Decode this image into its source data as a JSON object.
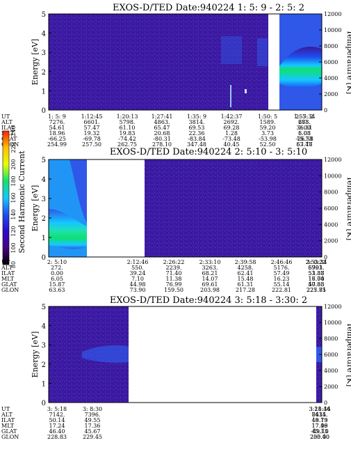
{
  "colors": {
    "background": "#3a1aa0",
    "noise": "#5a2bc0",
    "cyan": "#18d8e8",
    "green": "#1ee06a",
    "blue": "#2f58e8"
  },
  "colorbar": {
    "label": "Second Harmonic Current",
    "ticks": [
      "80",
      "100",
      "120",
      "140",
      "160",
      "180",
      "200",
      "220",
      "240"
    ],
    "stops": [
      "#000000",
      "#4b0082",
      "#2a0bd0",
      "#1f4ff0",
      "#15c8ff",
      "#10e070",
      "#e6ff00",
      "#ffc000",
      "#ff2000"
    ]
  },
  "panels": [
    {
      "title": "EXOS-D/TED   Date:940224  1: 5: 9 - 2: 5: 2",
      "ylabel": "Energy [eV]",
      "y2label": "Temperature [K]",
      "yticks": [
        "0",
        "1",
        "2",
        "3",
        "4",
        "5"
      ],
      "y2ticks": [
        "0",
        "2000",
        "4000",
        "6000",
        "8000",
        "10000",
        "12000"
      ],
      "table": {
        "labels": [
          "UT",
          "ALT",
          "ILAT",
          "MLT",
          "GLAT",
          "GLON"
        ],
        "columns": [
          [
            "1: 5: 9",
            "7276.",
            "54.61",
            "18.96",
            "-66.25",
            "254.99"
          ],
          [
            "1:12:45",
            "6601.",
            "57.47",
            "19.32",
            "-69.78",
            "257.50"
          ],
          [
            "1:20:13",
            "5798.",
            "61.10",
            "19.83",
            "-74.42",
            "262.75"
          ],
          [
            "1:27:41",
            "4863.",
            "65.47",
            "20.68",
            "-80.31",
            "278.10"
          ],
          [
            "1:35: 9",
            "3814.",
            "69.53",
            "22.36",
            "-83.84",
            "347.48"
          ],
          [
            "1:42:37",
            "2692.",
            "69.28",
            "1.28",
            "-73.48",
            "40.45"
          ],
          [
            "1:50: 5",
            "1589.",
            "59.20",
            "3.73",
            "-53.98",
            "52.50"
          ],
          [
            "1:57:34",
            "688.",
            "36.31",
            "5.08",
            "-26.58",
            "57.77"
          ],
          [
            "2: 5: 2",
            "273.",
            "0.00",
            "6.03",
            "15.73",
            "63.48"
          ]
        ]
      }
    },
    {
      "title": "EXOS-D/TED   Date:940224  2: 5:10 - 3: 5:10",
      "ylabel": "Energy [eV]",
      "y2label": "Temperature [K]",
      "yticks": [
        "0",
        "1",
        "2",
        "3",
        "4",
        "5"
      ],
      "y2ticks": [
        "0",
        "2000",
        "4000",
        "6000",
        "8000",
        "10000",
        "12000"
      ],
      "table": {
        "labels": [
          "UT",
          "ALT",
          "ILAT",
          "MLT",
          "GLAT",
          "GLON"
        ],
        "columns": [
          [
            "2: 5:10",
            "272.",
            "0.00",
            "6.05",
            "15.87",
            "63.63"
          ],
          [
            "2:12:46",
            "550.",
            "39.24",
            "7.10",
            "44.98",
            "73.90"
          ],
          [
            "2:26:22",
            "2239.",
            "71.40",
            "11.38",
            "76.99",
            "159.50"
          ],
          [
            "2:33:10",
            "3263.",
            "68.21",
            "14.07",
            "69.61",
            "203.98"
          ],
          [
            "2:39:58",
            "4258.",
            "62.41",
            "15.48",
            "61.31",
            "217.28"
          ],
          [
            "2:46:46",
            "5176.",
            "57.49",
            "16.23",
            "55.14",
            "222.81"
          ],
          [
            "2:53:34",
            "5993.",
            "53.87",
            "16.70",
            "50.83",
            "225.81"
          ],
          [
            "3: 0:22",
            "6701.",
            "51.38",
            "17.04",
            "47.88",
            "227.75"
          ]
        ]
      }
    },
    {
      "title": "EXOS-D/TED   Date:940224  3: 5:18 - 3:30: 2",
      "ylabel": "Energy [eV]",
      "y2label": "Temperature [K]",
      "yticks": [
        "0",
        "1",
        "2",
        "3",
        "4",
        "5"
      ],
      "y2ticks": [
        "0",
        "2000",
        "4000",
        "6000",
        "8000",
        "10000",
        "12000"
      ],
      "table": {
        "labels": [
          "UT",
          "ALT",
          "ILAT",
          "MLT",
          "GLAT",
          "GLON"
        ],
        "columns": [
          [
            "3: 5:18",
            "7142.",
            "50.14",
            "17.24",
            "46.40",
            "228.83"
          ],
          [
            "3: 8:30",
            "7396.",
            "49.55",
            "17.36",
            "45.67",
            "229.45"
          ],
          [
            "3:11:34",
            "7615.",
            "49.13",
            "17.46",
            "45.13",
            "230.00"
          ],
          [
            "3:28:46",
            "8434.",
            "48.79",
            "17.99",
            "-49.10",
            "205.40"
          ]
        ]
      }
    }
  ],
  "chart_data": [
    {
      "type": "heatmap",
      "title": "EXOS-D/TED   Date:940224  1: 5: 9 - 2: 5: 2",
      "xlabel": "UT",
      "ylabel": "Energy [eV]",
      "y2label": "Temperature [K]",
      "ylim": [
        0,
        5
      ],
      "y2lim": [
        0,
        12000
      ],
      "x_ticks": [
        "1: 5: 9",
        "1:12:45",
        "1:20:13",
        "1:27:41",
        "1:35: 9",
        "1:42:37",
        "1:50: 5",
        "1:57:34",
        "2: 5: 2"
      ],
      "data_gaps": [
        [
          "1:54:30",
          "1:56:00"
        ]
      ]
    },
    {
      "type": "heatmap",
      "title": "EXOS-D/TED   Date:940224  2: 5:10 - 3: 5:10",
      "xlabel": "UT",
      "ylabel": "Energy [eV]",
      "y2label": "Temperature [K]",
      "ylim": [
        0,
        5
      ],
      "y2lim": [
        0,
        12000
      ],
      "x_ticks": [
        "2: 5:10",
        "2:12:46",
        "2:26:22",
        "2:33:10",
        "2:39:58",
        "2:46:46",
        "2:53:34",
        "3: 0:22"
      ],
      "data_gaps": [
        [
          "2:12:46",
          "2:26:22"
        ]
      ]
    },
    {
      "type": "heatmap",
      "title": "EXOS-D/TED   Date:940224  3: 5:18 - 3:30: 2",
      "xlabel": "UT",
      "ylabel": "Energy [eV]",
      "y2label": "Temperature [K]",
      "ylim": [
        0,
        5
      ],
      "y2lim": [
        0,
        12000
      ],
      "x_ticks": [
        "3: 5:18",
        "3: 8:30",
        "3:11:34",
        "3:28:46"
      ],
      "data_gaps": [
        [
          "3:11:34",
          "3:28:46"
        ]
      ]
    }
  ]
}
